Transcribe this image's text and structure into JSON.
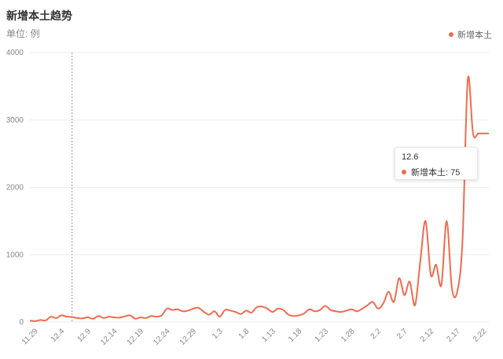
{
  "header": {
    "title": "新增本土趋势",
    "unit": "单位: 例"
  },
  "legend": {
    "label": "新增本土"
  },
  "tooltip": {
    "date": "12.6",
    "label": "新增本土: 75"
  },
  "colors": {
    "series": "#f06b4f",
    "grid": "#ececec",
    "crosshair": "#999999"
  },
  "chart_data": {
    "type": "line",
    "title": "新增本土趋势",
    "ylabel": "单位: 例",
    "xlabel": "",
    "ylim": [
      0,
      4000
    ],
    "yticks": [
      0,
      1000,
      2000,
      3000,
      4000
    ],
    "xticks": [
      "11.29",
      "12.4",
      "12.9",
      "12.14",
      "12.19",
      "12.24",
      "12.29",
      "1.3",
      "1.8",
      "1.13",
      "1.18",
      "1.23",
      "1.28",
      "2.2",
      "2.7",
      "2.12",
      "2.17",
      "2.22"
    ],
    "grid": true,
    "legend_position": "top-right",
    "series": [
      {
        "name": "新增本土",
        "x": [
          "11.28",
          "11.29",
          "11.30",
          "12.1",
          "12.2",
          "12.3",
          "12.4",
          "12.5",
          "12.6",
          "12.7",
          "12.8",
          "12.9",
          "12.10",
          "12.11",
          "12.12",
          "12.13",
          "12.14",
          "12.15",
          "12.16",
          "12.17",
          "12.18",
          "12.19",
          "12.20",
          "12.21",
          "12.22",
          "12.23",
          "12.24",
          "12.25",
          "12.26",
          "12.27",
          "12.28",
          "12.29",
          "12.30",
          "12.31",
          "1.1",
          "1.2",
          "1.3",
          "1.4",
          "1.5",
          "1.6",
          "1.7",
          "1.8",
          "1.9",
          "1.10",
          "1.11",
          "1.12",
          "1.13",
          "1.14",
          "1.15",
          "1.16",
          "1.17",
          "1.18",
          "1.19",
          "1.20",
          "1.21",
          "1.22",
          "1.23",
          "1.24",
          "1.25",
          "1.26",
          "1.27",
          "1.28",
          "1.29",
          "1.30",
          "1.31",
          "2.1",
          "2.2",
          "2.3",
          "2.4",
          "2.5",
          "2.6",
          "2.7",
          "2.8",
          "2.9",
          "2.10",
          "2.11",
          "2.12",
          "2.13",
          "2.14",
          "2.15",
          "2.16",
          "2.17",
          "2.18",
          "2.19",
          "2.20",
          "2.21",
          "2.22",
          "2.23"
        ],
        "values": [
          20,
          15,
          30,
          25,
          80,
          60,
          100,
          80,
          75,
          60,
          55,
          70,
          50,
          90,
          60,
          80,
          70,
          65,
          85,
          100,
          50,
          70,
          60,
          90,
          80,
          100,
          200,
          180,
          190,
          160,
          170,
          200,
          210,
          150,
          110,
          160,
          80,
          180,
          170,
          150,
          120,
          170,
          140,
          220,
          230,
          200,
          150,
          200,
          180,
          110,
          90,
          100,
          130,
          190,
          160,
          180,
          240,
          180,
          160,
          150,
          170,
          190,
          160,
          200,
          250,
          300,
          200,
          280,
          450,
          300,
          650,
          400,
          600,
          250,
          900,
          1500,
          700,
          850,
          550,
          1500,
          500,
          450,
          1200,
          3600,
          2800,
          2800,
          2800,
          2800
        ]
      }
    ]
  }
}
